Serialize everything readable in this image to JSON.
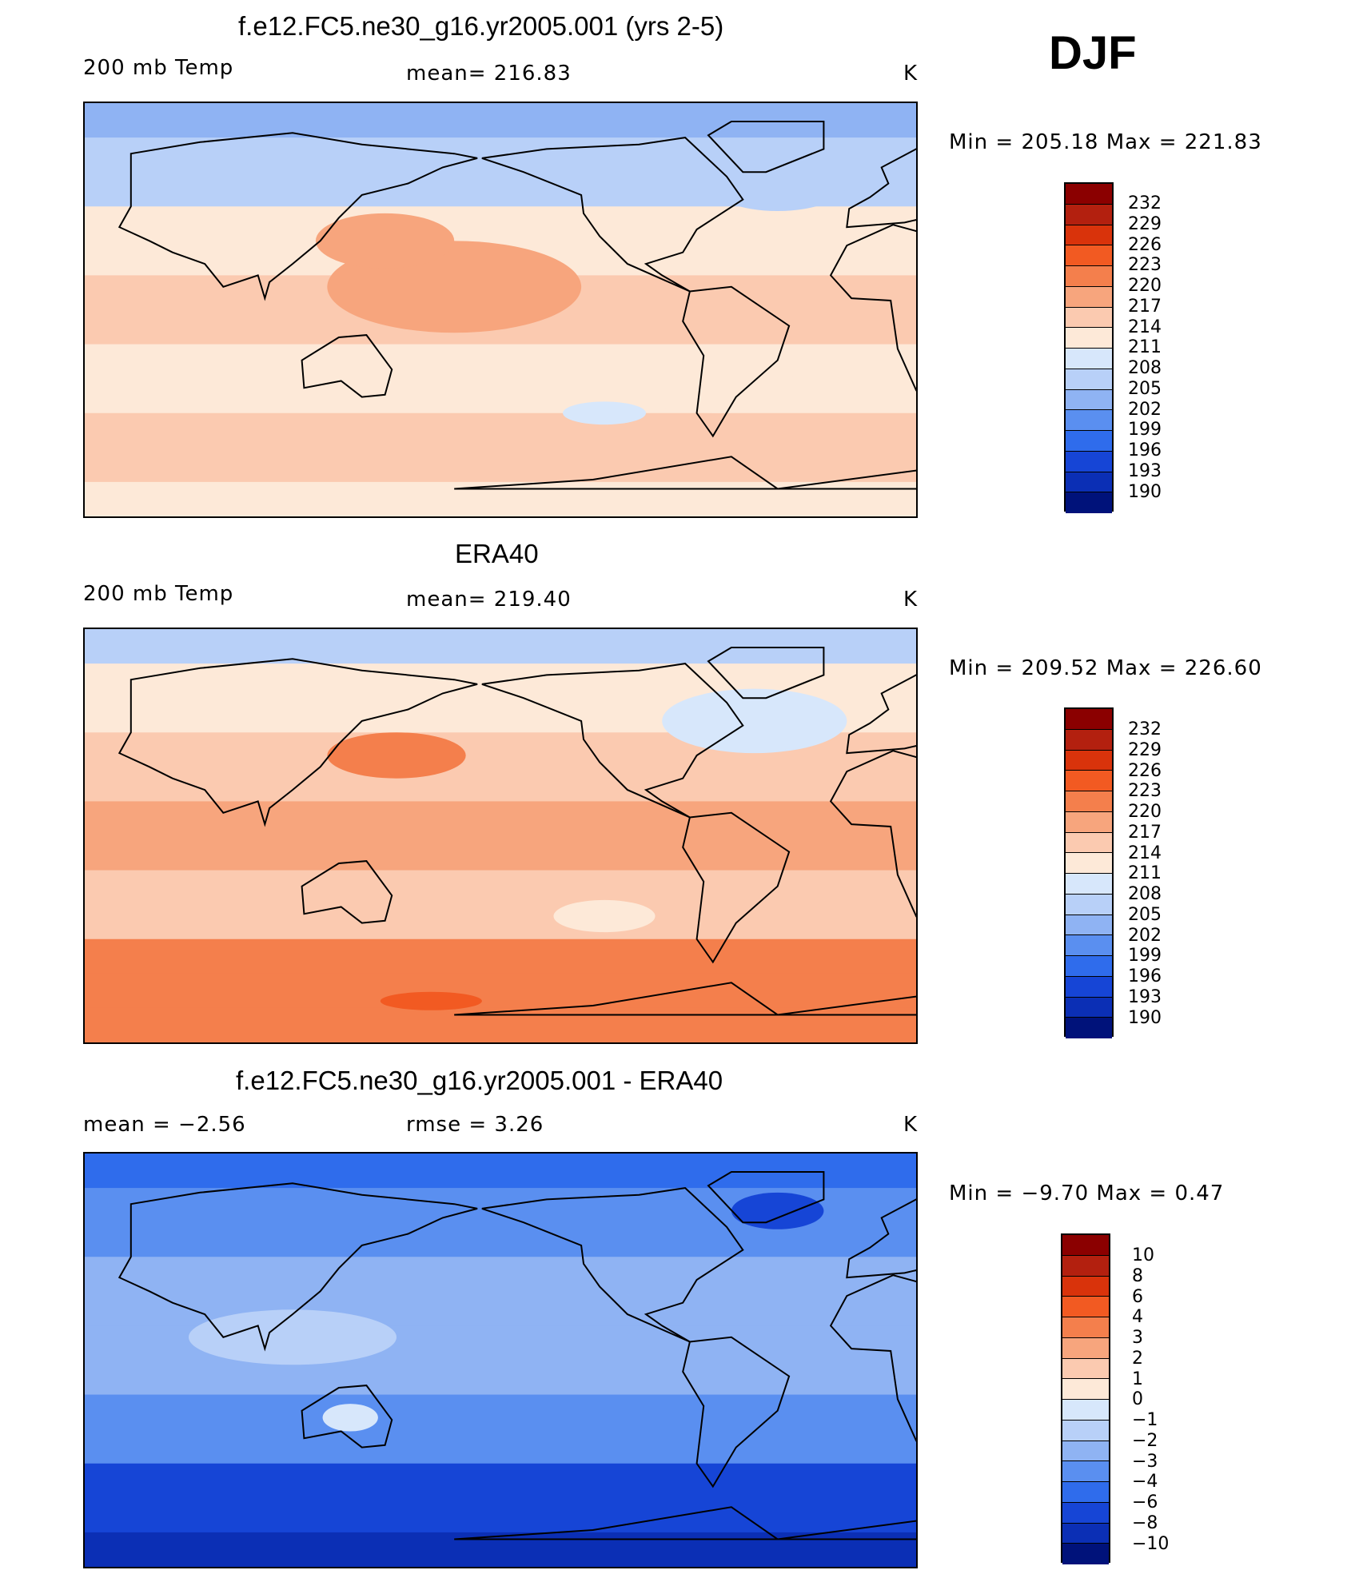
{
  "season": "DJF",
  "panels": [
    {
      "title": "f.e12.FC5.ne30_g16.yr2005.001 (yrs 2-5)",
      "left_label": "200 mb Temp",
      "center_label": "mean=  216.83",
      "units": "K",
      "minmax": "Min  =  205.18  Max  =  221.83",
      "scale": "abs",
      "bands": [
        {
          "lat": 90,
          "level": 205
        },
        {
          "lat": 75,
          "level": 205
        },
        {
          "lat": 60,
          "level": 208
        },
        {
          "lat": 45,
          "level": 211
        },
        {
          "lat": 30,
          "level": 214
        },
        {
          "lat": 15,
          "level": 217
        },
        {
          "lat": 0,
          "level": 217
        },
        {
          "lat": -15,
          "level": 217
        },
        {
          "lat": -30,
          "level": 214
        },
        {
          "lat": -45,
          "level": 214
        },
        {
          "lat": -60,
          "level": 217
        },
        {
          "lat": -75,
          "level": 214
        },
        {
          "lat": -90,
          "level": 214
        }
      ],
      "features": [
        {
          "lon": 180,
          "lat": 10,
          "rx": 55,
          "ry": 20,
          "level": 220
        },
        {
          "lon": 150,
          "lat": 30,
          "rx": 30,
          "ry": 12,
          "level": 220
        },
        {
          "lon": -65,
          "lat": -35,
          "rx": 40,
          "ry": 10,
          "level": 214
        },
        {
          "lon": -115,
          "lat": -45,
          "rx": 18,
          "ry": 5,
          "level": 211
        },
        {
          "lon": -40,
          "lat": 55,
          "rx": 30,
          "ry": 12,
          "level": 208
        }
      ]
    },
    {
      "title": "ERA40",
      "left_label": "200 mb Temp",
      "center_label": "mean=  219.40",
      "units": "K",
      "minmax": "Min  =  209.52  Max  =  226.60",
      "scale": "abs",
      "bands": [
        {
          "lat": 90,
          "level": 208
        },
        {
          "lat": 75,
          "level": 211
        },
        {
          "lat": 60,
          "level": 214
        },
        {
          "lat": 45,
          "level": 217
        },
        {
          "lat": 30,
          "level": 217
        },
        {
          "lat": 15,
          "level": 220
        },
        {
          "lat": 0,
          "level": 220
        },
        {
          "lat": -15,
          "level": 220
        },
        {
          "lat": -30,
          "level": 217
        },
        {
          "lat": -45,
          "level": 217
        },
        {
          "lat": -60,
          "level": 223
        },
        {
          "lat": -75,
          "level": 223
        },
        {
          "lat": -90,
          "level": 223
        }
      ],
      "features": [
        {
          "lon": 155,
          "lat": 35,
          "rx": 30,
          "ry": 10,
          "level": 223
        },
        {
          "lon": -115,
          "lat": -35,
          "rx": 22,
          "ry": 7,
          "level": 214
        },
        {
          "lon": 170,
          "lat": -72,
          "rx": 22,
          "ry": 4,
          "level": 226
        },
        {
          "lon": -50,
          "lat": 50,
          "rx": 40,
          "ry": 14,
          "level": 211
        }
      ]
    },
    {
      "title": "f.e12.FC5.ne30_g16.yr2005.001 - ERA40",
      "left_label": "mean =    −2.56",
      "center_label": "rmse =     3.26",
      "units": "K",
      "minmax": "Min  =    −9.70  Max  =     0.47",
      "scale": "diff",
      "bands": [
        {
          "lat": 90,
          "level": -4
        },
        {
          "lat": 75,
          "level": -4
        },
        {
          "lat": 60,
          "level": -3
        },
        {
          "lat": 45,
          "level": -3
        },
        {
          "lat": 30,
          "level": -2
        },
        {
          "lat": 15,
          "level": -2
        },
        {
          "lat": 0,
          "level": -2
        },
        {
          "lat": -15,
          "level": -2
        },
        {
          "lat": -30,
          "level": -3
        },
        {
          "lat": -45,
          "level": -4
        },
        {
          "lat": -60,
          "level": -6
        },
        {
          "lat": -75,
          "level": -6
        },
        {
          "lat": -90,
          "level": -8
        }
      ],
      "features": [
        {
          "lon": 110,
          "lat": 10,
          "rx": 45,
          "ry": 12,
          "level": -1
        },
        {
          "lon": 135,
          "lat": -25,
          "rx": 12,
          "ry": 6,
          "level": 0
        },
        {
          "lon": -40,
          "lat": 65,
          "rx": 20,
          "ry": 8,
          "level": -6
        }
      ]
    }
  ],
  "colorbars": {
    "abs": {
      "labels": [
        "232",
        "229",
        "226",
        "223",
        "220",
        "217",
        "214",
        "211",
        "208",
        "205",
        "202",
        "199",
        "196",
        "193",
        "190"
      ],
      "levels": [
        232,
        229,
        226,
        223,
        220,
        217,
        214,
        211,
        208,
        205,
        202,
        199,
        196,
        193,
        190
      ],
      "colors": [
        "#8b0000",
        "#b3200f",
        "#d9330b",
        "#f25a22",
        "#f47f4c",
        "#f7a57d",
        "#fbcab0",
        "#fde9d8",
        "#d7e7fb",
        "#b8d0f8",
        "#8fb3f3",
        "#5a8ff0",
        "#2f6cec",
        "#1645d6",
        "#0b2fb5",
        "#00127a"
      ]
    },
    "diff": {
      "labels": [
        "10",
        "8",
        "6",
        "4",
        "3",
        "2",
        "1",
        "0",
        "−1",
        "−2",
        "−3",
        "−4",
        "−6",
        "−8",
        "−10"
      ],
      "levels": [
        10,
        8,
        6,
        4,
        3,
        2,
        1,
        0,
        -1,
        -2,
        -3,
        -4,
        -6,
        -8,
        -10
      ],
      "colors": [
        "#8b0000",
        "#b3200f",
        "#d9330b",
        "#f25a22",
        "#f47f4c",
        "#f7a57d",
        "#fbcab0",
        "#fde9d8",
        "#d7e7fb",
        "#b8d0f8",
        "#8fb3f3",
        "#5a8ff0",
        "#2f6cec",
        "#1645d6",
        "#0b2fb5",
        "#00127a"
      ]
    }
  }
}
